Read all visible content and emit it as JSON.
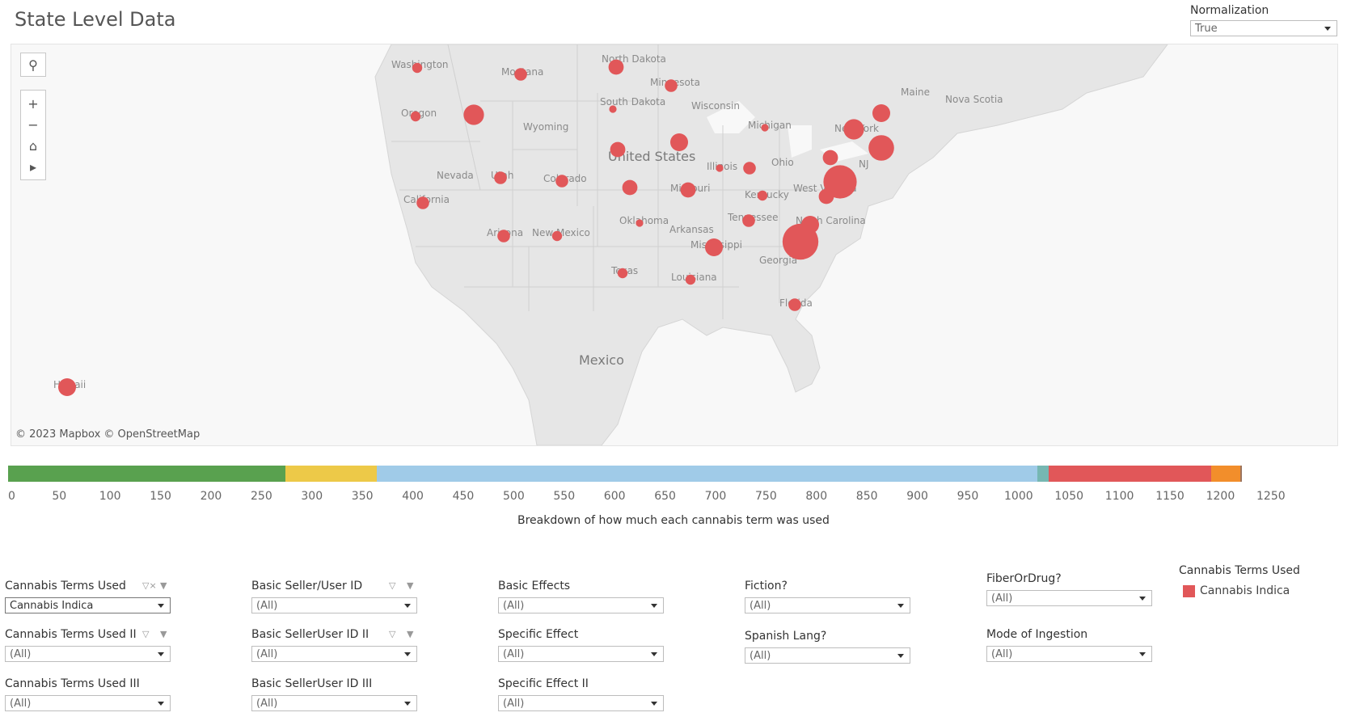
{
  "page": {
    "title": "State Level Data"
  },
  "normalization": {
    "label": "Normalization",
    "value": "True"
  },
  "map": {
    "attribution": "© 2023 Mapbox © OpenStreetMap",
    "labels": {
      "washington": "Washington",
      "montana": "Montana",
      "north_dakota": "North Dakota",
      "minnesota": "Minnesota",
      "wisconsin": "Wisconsin",
      "michigan": "Michigan",
      "maine": "Maine",
      "nova_scotia": "Nova Scotia",
      "oregon": "Oregon",
      "south_dakota": "South Dakota",
      "wyoming": "Wyoming",
      "new_york": "New York",
      "nj": "NJ",
      "ohio": "Ohio",
      "nevada": "Nevada",
      "utah": "Utah",
      "colorado": "Colorado",
      "united_states": "United States",
      "illinois": "Illinois",
      "missouri": "Missouri",
      "west_virginia": "West Virginia",
      "kentucky": "Kentucky",
      "california": "California",
      "oklahoma": "Oklahoma",
      "tennessee": "Tennessee",
      "north_carolina": "North Carolina",
      "arizona": "Arizona",
      "new_mexico": "New Mexico",
      "arkansas": "Arkansas",
      "mississippi": "Mississippi",
      "georgia": "Georgia",
      "texas": "Texas",
      "louisiana": "Louisiana",
      "florida": "Florida",
      "mexico": "Mexico",
      "hawaii": "Hawaii"
    },
    "points": [
      {
        "state": "Washington",
        "size": 2
      },
      {
        "state": "Montana",
        "size": 3
      },
      {
        "state": "North Dakota",
        "size": 4
      },
      {
        "state": "Minnesota",
        "size": 3
      },
      {
        "state": "Oregon",
        "size": 2
      },
      {
        "state": "Idaho",
        "size": 6
      },
      {
        "state": "South Dakota",
        "size": 1
      },
      {
        "state": "Michigan",
        "size": 1
      },
      {
        "state": "New York",
        "size": 6
      },
      {
        "state": "Vermont",
        "size": 5
      },
      {
        "state": "New Jersey",
        "size": 8
      },
      {
        "state": "Nebraska",
        "size": 4
      },
      {
        "state": "Iowa",
        "size": 5
      },
      {
        "state": "Pennsylvania",
        "size": 4
      },
      {
        "state": "Maryland",
        "size": 11
      },
      {
        "state": "Utah",
        "size": 3
      },
      {
        "state": "Colorado",
        "size": 3
      },
      {
        "state": "Kansas",
        "size": 4
      },
      {
        "state": "Missouri",
        "size": 4
      },
      {
        "state": "Illinois",
        "size": 1
      },
      {
        "state": "Indiana",
        "size": 3
      },
      {
        "state": "Virginia",
        "size": 4
      },
      {
        "state": "Kentucky",
        "size": 2
      },
      {
        "state": "California",
        "size": 3
      },
      {
        "state": "Oklahoma",
        "size": 1
      },
      {
        "state": "Tennessee",
        "size": 3
      },
      {
        "state": "North Carolina",
        "size": 5
      },
      {
        "state": "South Carolina",
        "size": 12
      },
      {
        "state": "Arizona",
        "size": 3
      },
      {
        "state": "New Mexico",
        "size": 2
      },
      {
        "state": "Mississippi",
        "size": 5
      },
      {
        "state": "Texas",
        "size": 2
      },
      {
        "state": "Louisiana",
        "size": 2
      },
      {
        "state": "Florida",
        "size": 3
      },
      {
        "state": "Hawaii",
        "size": 5
      }
    ],
    "point_color": "#e15759"
  },
  "breakdown": {
    "title": "Breakdown of how much each cannabis term was used",
    "ticks": [
      "0",
      "50",
      "100",
      "150",
      "200",
      "250",
      "300",
      "350",
      "400",
      "450",
      "500",
      "550",
      "600",
      "650",
      "700",
      "750",
      "800",
      "850",
      "900",
      "950",
      "1000",
      "1050",
      "1100",
      "1150",
      "1200",
      "1250"
    ],
    "range": [
      0,
      1250
    ],
    "segments": [
      {
        "color": "#59a14f",
        "start": 0,
        "end": 275
      },
      {
        "color": "#edc948",
        "start": 275,
        "end": 365
      },
      {
        "color": "#a0cbe8",
        "start": 365,
        "end": 1020
      },
      {
        "color": "#76b7b2",
        "start": 1020,
        "end": 1031
      },
      {
        "color": "#e15759",
        "start": 1031,
        "end": 1192
      },
      {
        "color": "#f28e2b",
        "start": 1192,
        "end": 1221
      },
      {
        "color": "#9c755f",
        "start": 1221,
        "end": 1223
      }
    ]
  },
  "filters": {
    "f1": {
      "label": "Cannabis Terms Used",
      "value": "Cannabis Indica"
    },
    "f2": {
      "label": "Cannabis Terms Used II",
      "value": "(All)"
    },
    "f3": {
      "label": "Cannabis Terms Used III",
      "value": "(All)"
    },
    "f4": {
      "label": "Basic Seller/User ID",
      "value": "(All)"
    },
    "f5": {
      "label": "Basic SellerUser ID II",
      "value": "(All)"
    },
    "f6": {
      "label": "Basic SellerUser ID III",
      "value": "(All)"
    },
    "f7": {
      "label": "Basic Effects",
      "value": "(All)"
    },
    "f8": {
      "label": "Specific Effect",
      "value": "(All)"
    },
    "f9": {
      "label": "Specific Effect II",
      "value": "(All)"
    },
    "f10": {
      "label": "Fiction?",
      "value": "(All)"
    },
    "f11": {
      "label": "Spanish Lang?",
      "value": "(All)"
    },
    "f12": {
      "label": "FiberOrDrug?",
      "value": "(All)"
    },
    "f13": {
      "label": "Mode of Ingestion",
      "value": "(All)"
    }
  },
  "legend": {
    "title": "Cannabis Terms Used",
    "item": "Cannabis Indica",
    "color": "#e15759"
  }
}
